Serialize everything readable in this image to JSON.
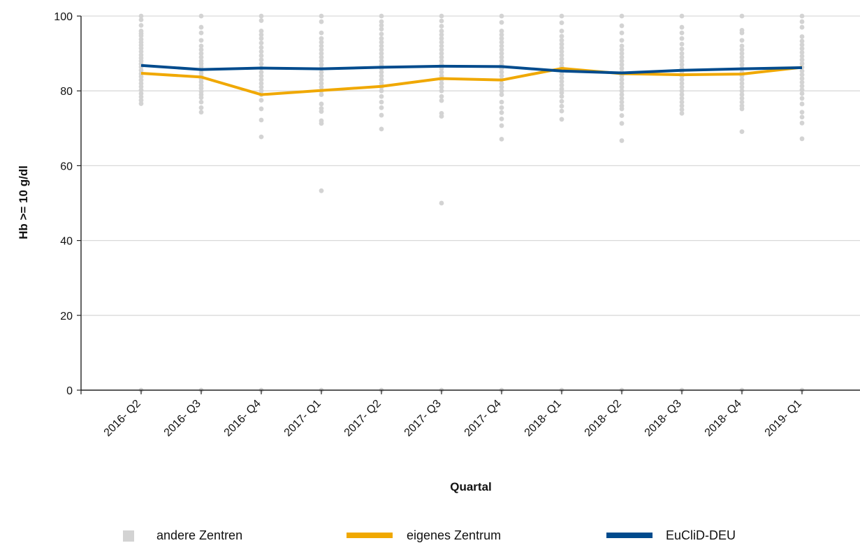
{
  "chart_data": {
    "type": "line",
    "xlabel": "Quartal",
    "ylabel": "Hb >= 10 g/dl",
    "ylim": [
      0,
      100
    ],
    "yticks": [
      "0",
      "20",
      "40",
      "60",
      "80",
      "100"
    ],
    "grid": "horizontal",
    "legend_position": "bottom",
    "categories": [
      "2016- Q2",
      "2016- Q3",
      "2016- Q4",
      "2017- Q1",
      "2017- Q2",
      "2017- Q3",
      "2017- Q4",
      "2018- Q1",
      "2018- Q2",
      "2018- Q3",
      "2018- Q4",
      "2019- Q1"
    ],
    "series": [
      {
        "name": "eigenes Zentrum",
        "type": "line",
        "color": "#f0a800",
        "values": [
          84.7,
          83.7,
          79.0,
          80.1,
          81.2,
          83.3,
          82.9,
          86.0,
          84.6,
          84.3,
          84.5,
          86.3
        ]
      },
      {
        "name": "EuCliD-DEU",
        "type": "line",
        "color": "#004b8d",
        "values": [
          86.8,
          85.7,
          86.1,
          85.9,
          86.3,
          86.6,
          86.5,
          85.3,
          84.8,
          85.5,
          85.9,
          86.2
        ]
      },
      {
        "name": "andere Zentren",
        "type": "scatter",
        "color": "#d3d3d3",
        "points": [
          [
            100,
            99,
            97.5,
            96,
            95.3,
            94.7,
            93.8,
            93,
            92.2,
            91.4,
            90.5,
            89.6,
            88.8,
            88,
            87.2,
            86.4,
            85.5,
            84.6,
            83.8,
            82.9,
            82,
            81.1,
            80.2,
            79.3,
            78.4,
            77.5,
            76.6,
            0
          ],
          [
            100,
            97,
            95.5,
            93.5,
            92,
            91,
            90,
            89,
            88,
            87.3,
            86.5,
            85.6,
            84.8,
            84,
            83.2,
            82.4,
            81.5,
            80.7,
            79.8,
            79,
            78.2,
            77,
            75.5,
            74.3,
            0
          ],
          [
            100,
            98.8,
            96,
            95,
            94,
            92.8,
            91.6,
            90.5,
            89.4,
            88.3,
            87.2,
            86.1,
            85,
            84,
            83,
            82,
            81,
            80,
            79,
            77.5,
            75.2,
            72.2,
            67.7,
            0
          ],
          [
            100,
            98.5,
            95.5,
            94,
            93,
            92,
            91,
            90,
            89,
            88,
            87,
            86,
            85,
            84,
            83,
            82,
            81,
            80,
            79,
            76.5,
            75.3,
            74.5,
            72,
            71.3,
            53.3,
            0
          ],
          [
            100,
            98.5,
            97.5,
            96.5,
            95.2,
            94,
            93,
            92,
            91,
            90,
            89,
            88,
            87,
            86,
            85,
            84,
            83,
            82,
            81,
            80,
            78.5,
            77,
            75.5,
            73.5,
            69.8,
            0
          ],
          [
            100,
            98.7,
            97.3,
            96,
            95,
            94,
            93,
            92,
            91,
            90,
            89,
            88,
            87,
            86,
            85,
            84,
            83,
            82,
            81,
            80,
            78.5,
            77.4,
            74,
            73.2,
            50,
            0
          ],
          [
            100,
            98.3,
            96,
            95,
            94,
            93,
            92,
            91,
            90,
            89,
            88,
            87,
            86,
            85,
            84,
            83,
            82,
            81,
            80,
            79,
            77,
            75.5,
            74.2,
            72.5,
            70.7,
            67.1,
            0
          ],
          [
            100,
            98.2,
            96,
            94.6,
            93.5,
            92.5,
            91.5,
            90.5,
            89.5,
            88.5,
            87.5,
            86.5,
            85.5,
            84.5,
            83.5,
            82.5,
            81.5,
            80.5,
            79.5,
            78.5,
            77.2,
            75.9,
            74.6,
            72.4,
            0
          ],
          [
            100,
            97.4,
            95.5,
            93.5,
            92,
            91,
            90,
            89,
            88,
            87,
            86,
            85,
            84,
            83,
            82,
            81,
            80,
            79,
            78,
            77,
            76,
            75.2,
            73.4,
            71.3,
            66.7,
            0
          ],
          [
            100,
            97,
            95.5,
            94,
            92.5,
            91.2,
            90,
            89,
            88,
            87,
            86,
            85,
            84,
            83,
            82,
            81,
            80,
            79,
            78,
            77,
            76,
            75,
            74,
            0
          ],
          [
            100,
            96.2,
            95.5,
            93.5,
            92,
            91,
            90,
            89,
            88,
            87,
            86,
            85,
            84,
            83,
            82,
            81,
            80,
            79,
            78,
            77,
            76,
            75.2,
            69.1,
            0
          ],
          [
            100,
            98.5,
            97,
            94.5,
            93.3,
            92.3,
            91.3,
            90.3,
            89.3,
            88.3,
            87.3,
            86.3,
            85.3,
            84.3,
            83.3,
            82.3,
            81.3,
            80.3,
            79.3,
            78,
            76.5,
            74.3,
            73,
            71.4,
            67.2,
            0
          ]
        ]
      }
    ]
  },
  "legend": {
    "items": [
      {
        "label": "andere Zentren",
        "color": "#d3d3d3"
      },
      {
        "label": "eigenes Zentrum",
        "color": "#f0a800"
      },
      {
        "label": "EuCliD-DEU",
        "color": "#004b8d"
      }
    ]
  }
}
